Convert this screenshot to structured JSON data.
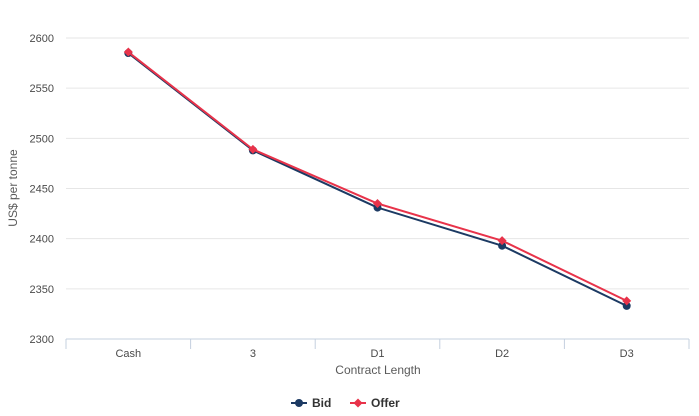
{
  "chart_data": {
    "type": "line",
    "title": "",
    "xlabel": "Contract Length",
    "ylabel": "US$ per tonne",
    "categories": [
      "Cash",
      "3",
      "D1",
      "D2",
      "D3"
    ],
    "ylim": [
      2300,
      2600
    ],
    "yticks": [
      2300,
      2350,
      2400,
      2450,
      2500,
      2550,
      2600
    ],
    "grid": true,
    "legend_position": "bottom-center",
    "series": [
      {
        "name": "Bid",
        "color": "#1c3a63",
        "marker": "circle",
        "values": [
          2585,
          2488,
          2431,
          2393,
          2333
        ]
      },
      {
        "name": "Offer",
        "color": "#e8334a",
        "marker": "diamond",
        "values": [
          2586,
          2489,
          2435,
          2398,
          2338
        ]
      }
    ]
  }
}
